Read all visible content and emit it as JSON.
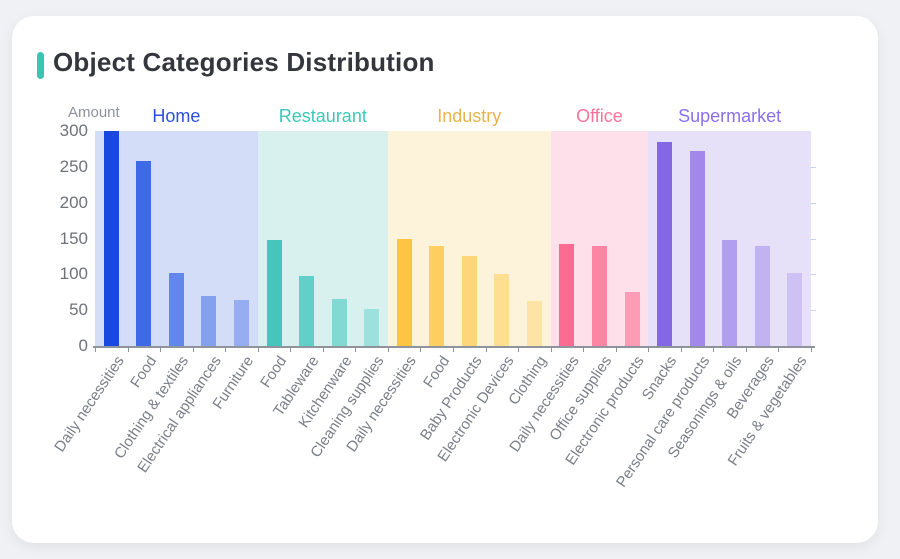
{
  "card": {
    "title": "Object Categories Distribution",
    "accent_color": "#3cc3b3"
  },
  "chart_data": {
    "type": "bar",
    "title": "Object Categories Distribution",
    "xlabel": "",
    "ylabel": "Amount",
    "ylim": [
      0,
      300
    ],
    "yticks": [
      0,
      50,
      100,
      150,
      200,
      250,
      300
    ],
    "grid": false,
    "legend_position": "group-headers-top",
    "axis_color": "#8f949c",
    "tick_label_color": "#6e727b",
    "xlabel_rotation_deg": 56,
    "groups": [
      {
        "name": "Home",
        "label_color": "#2c50dd",
        "band_color": "#d4ddf7",
        "bar_colors": [
          "#1848e0",
          "#3e6ae8",
          "#6286ec",
          "#84a1ef",
          "#96adf1"
        ],
        "categories": [
          "Daily necessities",
          "Food",
          "Clothing & textiles",
          "Electrical appliances",
          "Furniture"
        ],
        "values": [
          300,
          258,
          102,
          70,
          64
        ]
      },
      {
        "name": "Restaurant",
        "label_color": "#3cc8b8",
        "band_color": "#d9f1ee",
        "bar_colors": [
          "#46c5bd",
          "#63cfc9",
          "#82d9d4",
          "#9ce1dd"
        ],
        "categories": [
          "Food",
          "Tableware",
          "Kitchenware",
          "Cleaning supplies"
        ],
        "values": [
          148,
          97,
          65,
          51
        ]
      },
      {
        "name": "Industry",
        "label_color": "#e8b34b",
        "band_color": "#fdf2da",
        "bar_colors": [
          "#fec443",
          "#fecf5e",
          "#fed679",
          "#fede90",
          "#fee4a4"
        ],
        "categories": [
          "Daily necessities",
          "Food",
          "Baby Products",
          "Electronic Devices",
          "Clothing"
        ],
        "values": [
          150,
          139,
          126,
          100,
          63
        ]
      },
      {
        "name": "Office",
        "label_color": "#f9729b",
        "band_color": "#fde0ea",
        "bar_colors": [
          "#fc6b92",
          "#fd85a4",
          "#fe9cb5"
        ],
        "categories": [
          "Daily necessities",
          "Office supplies",
          "Electronic products"
        ],
        "values": [
          142,
          139,
          75
        ]
      },
      {
        "name": "Supermarket",
        "label_color": "#8b70e8",
        "band_color": "#e6e0f8",
        "bar_colors": [
          "#8468e3",
          "#a288ea",
          "#b29eee",
          "#c1b3f1",
          "#cdc2f3"
        ],
        "categories": [
          "Snacks",
          "Personal care products",
          "Seasonings & oils",
          "Beverages",
          "Fruits & vegetables"
        ],
        "values": [
          285,
          272,
          148,
          140,
          102
        ]
      }
    ]
  }
}
